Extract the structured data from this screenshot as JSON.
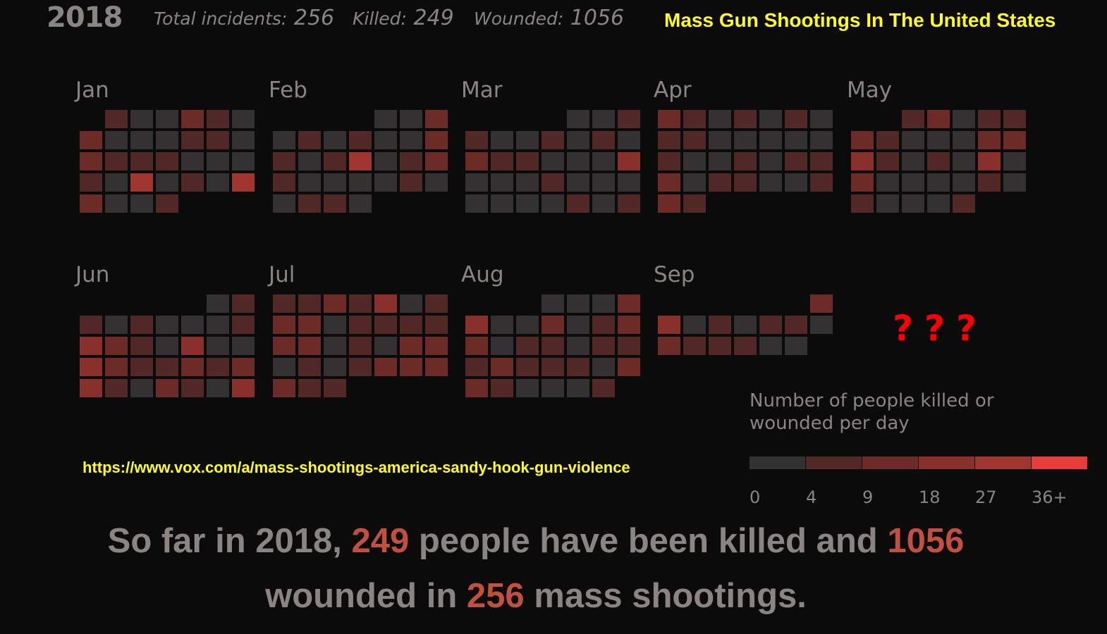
{
  "header": {
    "year": "2018",
    "incidents_label": "Total incidents:",
    "incidents_value": "256",
    "killed_label": "Killed:",
    "killed_value": "249",
    "wounded_label": "Wounded:",
    "wounded_value": "1056",
    "title": "Mass Gun Shootings In The United States"
  },
  "colors": {
    "background": "#0b0b0b",
    "label_text": "#8a8482",
    "highlight": "#c2503f",
    "yellow": "#ffff19",
    "question_marks": "#ff0000",
    "scale": [
      "#333132",
      "#522827",
      "#6d2b28",
      "#8a302c",
      "#a1352f",
      "#e63c3a"
    ]
  },
  "question_marks": "???",
  "source_url": "https://www.vox.com/a/mass-shootings-america-sandy-hook-gun-violence",
  "summary": {
    "line1_pre": "So far in 2018, ",
    "line1_killed": "249",
    "line1_mid": " people have been killed and ",
    "line1_wounded": "1056",
    "line2_pre": "wounded in ",
    "line2_count": "256",
    "line2_post": " mass shootings."
  },
  "chart_data": {
    "type": "heatmap",
    "subtype": "calendar",
    "year": 2018,
    "week_start": "Sunday",
    "legend": {
      "title": "Number of people killed or wounded per day",
      "bins": [
        "0",
        "4",
        "9",
        "18",
        "27",
        "36+"
      ]
    },
    "months": [
      {
        "name": "Jan",
        "days": [
          1,
          0,
          0,
          2,
          1,
          0,
          2,
          0,
          0,
          0,
          1,
          1,
          0,
          2,
          1,
          1,
          1,
          0,
          0,
          0,
          1,
          0,
          4,
          0,
          1,
          0,
          4,
          2,
          0,
          0,
          1
        ]
      },
      {
        "name": "Feb",
        "days": [
          0,
          0,
          2,
          0,
          1,
          0,
          1,
          0,
          0,
          2,
          1,
          0,
          1,
          4,
          0,
          1,
          2,
          1,
          0,
          0,
          0,
          0,
          1,
          0,
          0,
          1,
          1,
          0
        ]
      },
      {
        "name": "Mar",
        "days": [
          0,
          0,
          1,
          1,
          0,
          0,
          1,
          0,
          1,
          0,
          2,
          1,
          1,
          0,
          0,
          0,
          3,
          0,
          0,
          0,
          1,
          0,
          0,
          0,
          0,
          0,
          0,
          0,
          1,
          0,
          1
        ]
      },
      {
        "name": "Apr",
        "days": [
          2,
          1,
          0,
          1,
          0,
          1,
          0,
          1,
          1,
          0,
          0,
          0,
          0,
          0,
          1,
          0,
          0,
          1,
          0,
          1,
          1,
          2,
          0,
          1,
          1,
          0,
          0,
          1,
          2,
          1
        ]
      },
      {
        "name": "May",
        "days": [
          1,
          2,
          0,
          1,
          1,
          2,
          1,
          0,
          0,
          0,
          2,
          2,
          3,
          1,
          0,
          1,
          0,
          3,
          0,
          2,
          0,
          0,
          0,
          0,
          1,
          0,
          1,
          0,
          0,
          0,
          1
        ]
      },
      {
        "name": "Jun",
        "days": [
          0,
          1,
          1,
          0,
          1,
          0,
          0,
          0,
          1,
          3,
          2,
          1,
          0,
          3,
          0,
          0,
          3,
          2,
          1,
          1,
          2,
          1,
          2,
          3,
          1,
          0,
          2,
          1,
          0,
          3
        ]
      },
      {
        "name": "Jul",
        "days": [
          1,
          1,
          2,
          1,
          3,
          0,
          1,
          2,
          2,
          0,
          1,
          1,
          1,
          1,
          2,
          2,
          0,
          1,
          0,
          2,
          2,
          0,
          1,
          0,
          1,
          2,
          2,
          2,
          2,
          1,
          1
        ]
      },
      {
        "name": "Aug",
        "days": [
          0,
          0,
          0,
          2,
          3,
          0,
          0,
          2,
          0,
          1,
          2,
          2,
          0,
          1,
          1,
          0,
          1,
          1,
          1,
          2,
          1,
          1,
          1,
          0,
          2,
          2,
          1,
          0,
          0,
          0,
          1
        ]
      },
      {
        "name": "Sep",
        "days": [
          2,
          3,
          0,
          1,
          0,
          1,
          1,
          0,
          2,
          1,
          1,
          1,
          0,
          0
        ]
      }
    ]
  }
}
